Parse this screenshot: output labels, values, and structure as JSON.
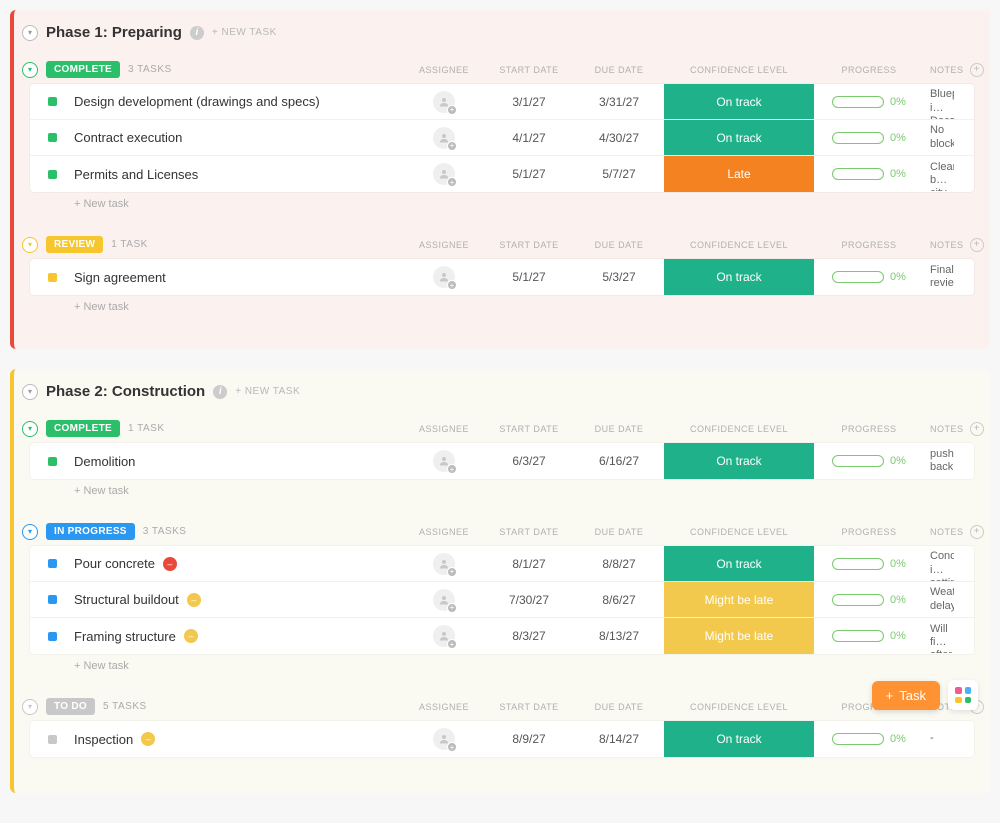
{
  "colors": {
    "phase1_accent": "#e9483b",
    "phase1_bg": "#fbf1ef",
    "phase2_accent": "#f7c62f",
    "phase2_bg": "#fafaf2",
    "status_complete": "#2bbf6a",
    "status_review": "#f7c62f",
    "status_inprogress": "#2a97f1",
    "status_todo": "#c8c8c8",
    "dot_complete": "#2bbf6a",
    "dot_review": "#f7c62f",
    "dot_inprogress": "#2a97f1",
    "dot_todo": "#c8c8c8",
    "conf_ontrack": "#1fb28a",
    "conf_late": "#f58220",
    "conf_mightbelate": "#f2c94c",
    "progress_border": "#7bc96f",
    "progress_text": "#7bc96f",
    "flag_red": "#e9483b",
    "flag_yellow": "#f2c94c",
    "fab_orange": "#ff9233"
  },
  "labels": {
    "new_task_top": "+ NEW TASK",
    "new_task_inline": "+ New task",
    "col_assignee": "ASSIGNEE",
    "col_start": "START DATE",
    "col_due": "DUE DATE",
    "col_conf": "CONFIDENCE LEVEL",
    "col_progress": "PROGRESS",
    "col_notes": "NOTES",
    "fab_task": "Task"
  },
  "phases": [
    {
      "title": "Phase 1: Preparing",
      "accent": "phase1_accent",
      "bg": "phase1_bg",
      "sections": [
        {
          "status_label": "COMPLETE",
          "status_color": "status_complete",
          "dot_color": "dot_complete",
          "count_label": "3 TASKS",
          "tasks": [
            {
              "name": "Design development (drawings and specs)",
              "start": "3/1/27",
              "due": "3/31/27",
              "confidence": "On track",
              "conf_color": "conf_ontrack",
              "progress": "0%",
              "notes": "Blueprint in Docs View"
            },
            {
              "name": "Contract execution",
              "start": "4/1/27",
              "due": "4/30/27",
              "confidence": "On track",
              "conf_color": "conf_ontrack",
              "progress": "0%",
              "notes": "No blockers"
            },
            {
              "name": "Permits and Licenses",
              "start": "5/1/27",
              "due": "5/7/27",
              "confidence": "Late",
              "conf_color": "conf_late",
              "progress": "0%",
              "notes": "Cleared by city"
            }
          ]
        },
        {
          "status_label": "REVIEW",
          "status_color": "status_review",
          "dot_color": "dot_review",
          "count_label": "1 TASK",
          "tasks": [
            {
              "name": "Sign agreement",
              "start": "5/1/27",
              "due": "5/3/27",
              "confidence": "On track",
              "conf_color": "conf_ontrack",
              "progress": "0%",
              "notes": "Final review"
            }
          ]
        }
      ]
    },
    {
      "title": "Phase 2: Construction",
      "accent": "phase2_accent",
      "bg": "phase2_bg",
      "sections": [
        {
          "status_label": "COMPLETE",
          "status_color": "status_complete",
          "dot_color": "dot_complete",
          "count_label": "1 TASK",
          "tasks": [
            {
              "name": "Demolition",
              "start": "6/3/27",
              "due": "6/16/27",
              "confidence": "On track",
              "conf_color": "conf_ontrack",
              "progress": "0%",
              "notes": "pushed back"
            }
          ]
        },
        {
          "status_label": "IN PROGRESS",
          "status_color": "status_inprogress",
          "dot_color": "dot_inprogress",
          "count_label": "3 TASKS",
          "tasks": [
            {
              "name": "Pour concrete",
              "flag": "red",
              "start": "8/1/27",
              "due": "8/8/27",
              "confidence": "On track",
              "conf_color": "conf_ontrack",
              "progress": "0%",
              "notes": "Concrete is setting"
            },
            {
              "name": "Structural buildout",
              "flag": "yellow",
              "start": "7/30/27",
              "due": "8/6/27",
              "confidence": "Might be late",
              "conf_color": "conf_mightbelate",
              "progress": "0%",
              "notes": "Weather delay"
            },
            {
              "name": "Framing structure",
              "flag": "yellow",
              "start": "8/3/27",
              "due": "8/13/27",
              "confidence": "Might be late",
              "conf_color": "conf_mightbelate",
              "progress": "0%",
              "notes": "Will finish after last suppl..."
            }
          ]
        },
        {
          "status_label": "TO DO",
          "status_color": "status_todo",
          "dot_color": "dot_todo",
          "count_label": "5 TASKS",
          "no_inline_new": true,
          "tasks": [
            {
              "name": "Inspection",
              "flag": "yellow",
              "start": "8/9/27",
              "due": "8/14/27",
              "confidence": "On track",
              "conf_color": "conf_ontrack",
              "progress": "0%",
              "notes": "-"
            }
          ]
        }
      ]
    }
  ]
}
